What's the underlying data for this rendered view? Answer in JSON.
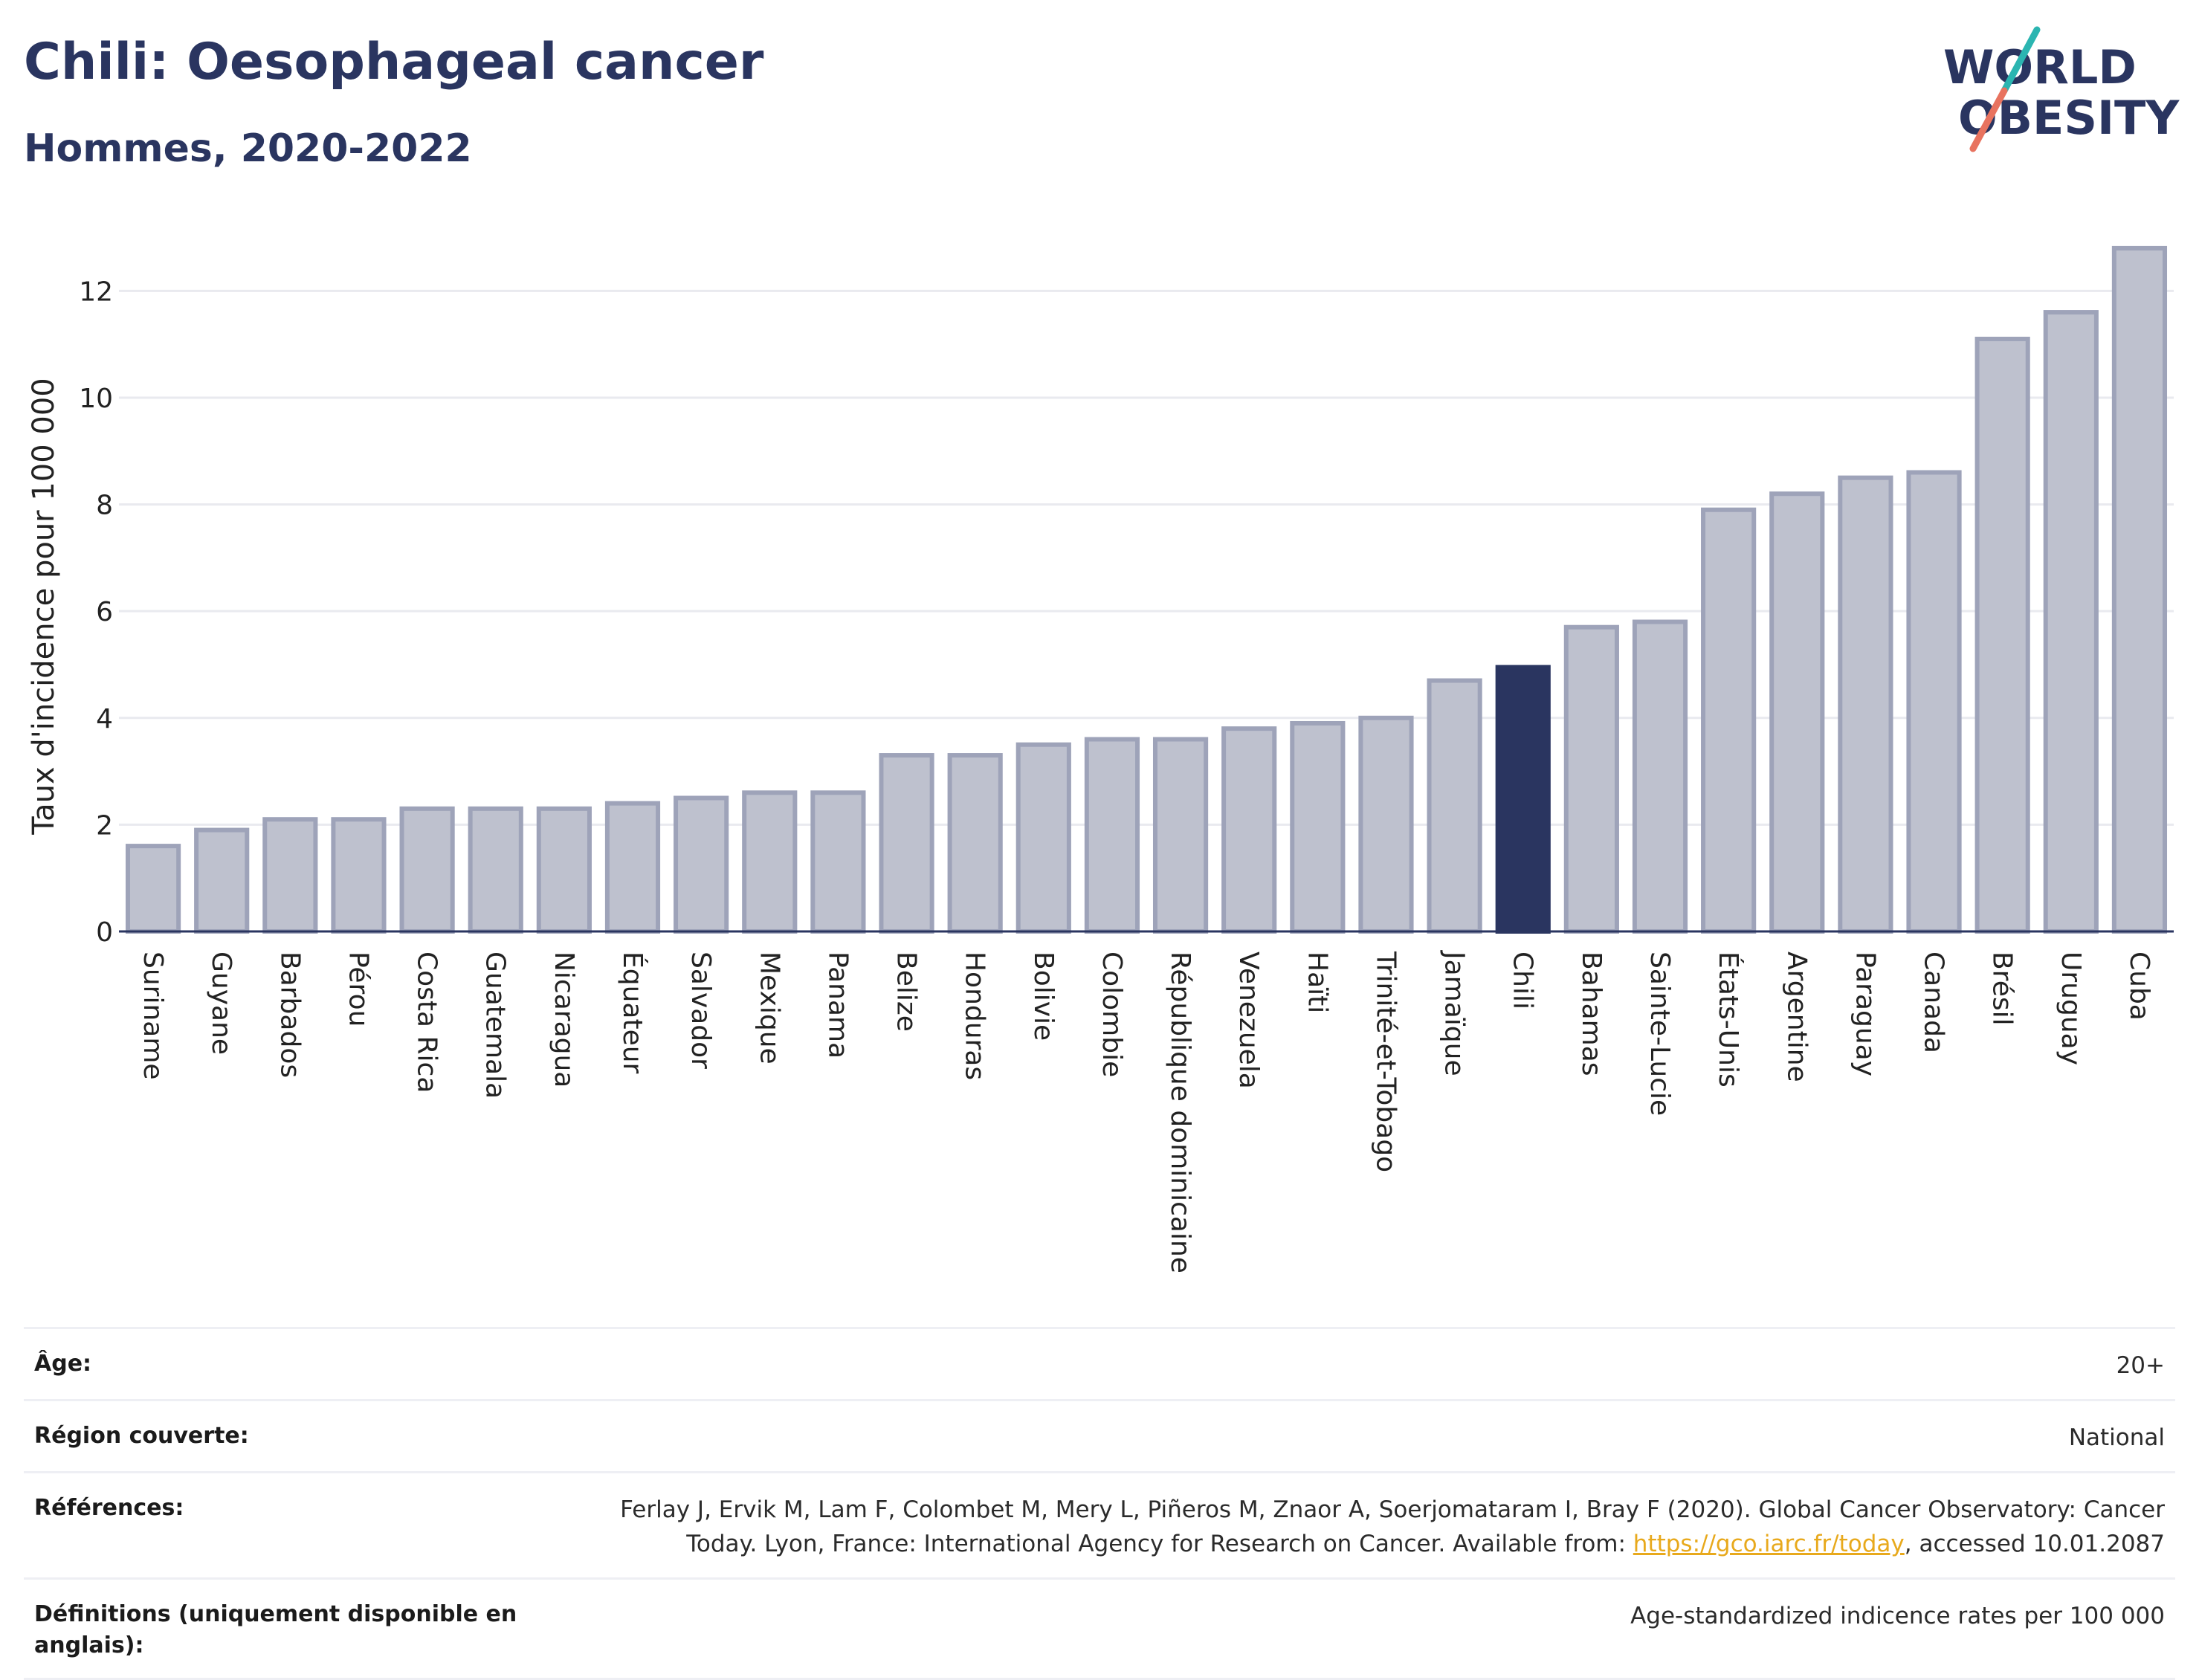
{
  "header": {
    "title": "Chili: Oesophageal cancer",
    "subtitle": "Hommes, 2020-2022"
  },
  "logo": {
    "line1": "WORLD",
    "line2": "OBESITY",
    "text_color": "#2a3560",
    "slash_top_color": "#2bb5b1",
    "slash_bottom_color": "#e8735f"
  },
  "colors": {
    "bar_fill": "#bec1ce",
    "bar_stroke": "#9ea3b9",
    "highlight": "#2a3560",
    "grid": "#e9eaef",
    "axis_text": "#222222"
  },
  "chart_data": {
    "type": "bar",
    "categories": [
      "Suriname",
      "Guyane",
      "Barbados",
      "Pérou",
      "Costa Rica",
      "Guatemala",
      "Nicaragua",
      "Équateur",
      "Salvador",
      "Mexique",
      "Panama",
      "Belize",
      "Honduras",
      "Bolivie",
      "Colombie",
      "République dominicaine",
      "Venezuela",
      "Haïti",
      "Trinité-et-Tobago",
      "Jamaïque",
      "Chili",
      "Bahamas",
      "Sainte-Lucie",
      "États-Unis",
      "Argentine",
      "Paraguay",
      "Canada",
      "Brésil",
      "Uruguay",
      "Cuba"
    ],
    "values": [
      1.6,
      1.9,
      2.1,
      2.1,
      2.3,
      2.3,
      2.3,
      2.4,
      2.5,
      2.6,
      2.6,
      3.3,
      3.3,
      3.5,
      3.6,
      3.6,
      3.8,
      3.9,
      4.0,
      4.7,
      4.95,
      5.7,
      5.8,
      7.9,
      8.2,
      8.5,
      8.6,
      11.1,
      11.6,
      12.8
    ],
    "highlight": "Chili",
    "title": "Chili: Oesophageal cancer",
    "subtitle": "Hommes, 2020-2022",
    "xlabel": "",
    "ylabel": "Taux d'incidence pour 100 000",
    "ylim": [
      0,
      13.3
    ],
    "yticks": [
      0,
      2,
      4,
      6,
      8,
      10,
      12
    ],
    "grid": true,
    "legend": "none"
  },
  "meta": [
    {
      "key": "Âge:",
      "value": "20+"
    },
    {
      "key": "Région couverte:",
      "value": "National"
    },
    {
      "key": "Références:",
      "value_before": "Ferlay J, Ervik M, Lam F, Colombet M, Mery L, Piñeros M, Znaor A, Soerjomataram I, Bray F (2020). Global Cancer Observatory: Cancer Today. Lyon, France: International Agency for Research on Cancer. Available from: ",
      "link": "https://gco.iarc.fr/today",
      "value_after": ", accessed 10.01.2087"
    },
    {
      "key": "Définitions (uniquement disponible en anglais):",
      "value": "Age-standardized indicence rates per 100 000"
    }
  ]
}
